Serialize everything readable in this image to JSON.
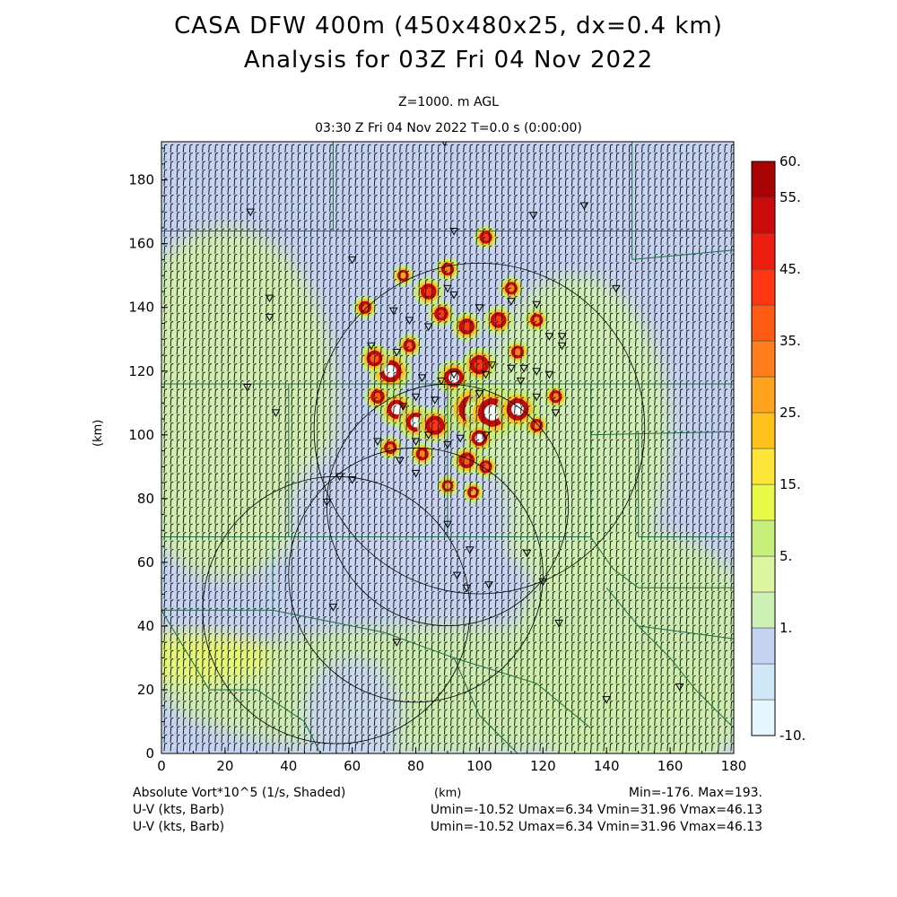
{
  "header": {
    "title": "CASA DFW 400m (450x480x25, dx=0.4 km)",
    "subtitle": "Analysis for 03Z Fri 04 Nov 2022",
    "level": "Z=1000. m AGL",
    "time": "03:30 Z Fri 04 Nov 2022    T=0.0 s (0:00:00)"
  },
  "footer": {
    "field_label": "Absolute Vort*10^5 (1/s, Shaded)",
    "xunit": "(km)",
    "minmax": "Min=-176. Max=193.",
    "wind1_label": "U-V (kts, Barb)",
    "wind1_stats": "Umin=-10.52 Umax=6.34 Vmin=31.96 Vmax=46.13",
    "wind2_label": "U-V (kts, Barb)",
    "wind2_stats": "Umin=-10.52 Umax=6.34 Vmin=31.96 Vmax=46.13"
  },
  "chart_data": {
    "type": "heatmap",
    "ylabel": "(km)",
    "xlabel": "(km)",
    "xlim": [
      0,
      180
    ],
    "ylim": [
      0,
      192
    ],
    "x_ticks": [
      0,
      20,
      40,
      60,
      80,
      100,
      120,
      140,
      160,
      180
    ],
    "y_ticks": [
      0,
      20,
      40,
      60,
      80,
      100,
      120,
      140,
      160,
      180
    ],
    "colorbar": {
      "tick_labels": [
        "60.",
        "55.",
        "45.",
        "35.",
        "25.",
        "15.",
        "5.",
        "1.",
        "-10."
      ],
      "bins": [
        "#e6f6ff",
        "#cfe7f7",
        "#c5d3f2",
        "#cdf0b3",
        "#ddf59f",
        "#c5ee7a",
        "#e8fa45",
        "#ffe538",
        "#ffc21a",
        "#ffa21c",
        "#ff7d1a",
        "#ff5a14",
        "#ff3614",
        "#ec1e10",
        "#cc0a0a",
        "#a80202"
      ]
    },
    "field_blobs": [
      {
        "x": 20,
        "y": 110,
        "rx": 35,
        "ry": 55,
        "color": "#d2f0a8"
      },
      {
        "x": 90,
        "y": 20,
        "rx": 90,
        "ry": 20,
        "color": "#cdf0a8"
      },
      {
        "x": 150,
        "y": 30,
        "rx": 40,
        "ry": 40,
        "color": "#cdf0a8"
      },
      {
        "x": 10,
        "y": 30,
        "rx": 25,
        "ry": 8,
        "color": "#e8fa6a"
      },
      {
        "x": 60,
        "y": 12,
        "rx": 15,
        "ry": 18,
        "color": "#c8d6f4"
      },
      {
        "x": 120,
        "y": 170,
        "rx": 60,
        "ry": 18,
        "color": "#c5d3f2"
      },
      {
        "x": 130,
        "y": 100,
        "rx": 30,
        "ry": 50,
        "color": "#d0f2ae"
      },
      {
        "x": 75,
        "y": 75,
        "rx": 35,
        "ry": 25,
        "color": "#c8d4f2"
      }
    ],
    "storm_cells": [
      {
        "x": 72,
        "y": 120,
        "r": 3.5,
        "core": "#ffffff"
      },
      {
        "x": 74,
        "y": 108,
        "r": 3,
        "core": "#ffffff"
      },
      {
        "x": 80,
        "y": 104,
        "r": 3,
        "core": "#ffffff"
      },
      {
        "x": 86,
        "y": 103,
        "r": 3,
        "core": "#ff3614"
      },
      {
        "x": 92,
        "y": 118,
        "r": 3,
        "core": "#ffffff"
      },
      {
        "x": 98,
        "y": 108,
        "r": 4.5,
        "core": "#ffffff"
      },
      {
        "x": 104,
        "y": 107,
        "r": 4.5,
        "core": "#ffffff"
      },
      {
        "x": 112,
        "y": 108,
        "r": 3.5,
        "core": "#ffffff"
      },
      {
        "x": 100,
        "y": 99,
        "r": 2.5,
        "core": "#ffffff"
      },
      {
        "x": 100,
        "y": 122,
        "r": 3,
        "core": "#ff3614"
      },
      {
        "x": 96,
        "y": 134,
        "r": 2.5,
        "core": "#ff3614"
      },
      {
        "x": 84,
        "y": 145,
        "r": 2.5,
        "core": "#ff3614"
      },
      {
        "x": 106,
        "y": 136,
        "r": 2.5,
        "core": "#ff3614"
      },
      {
        "x": 102,
        "y": 162,
        "r": 2,
        "core": "#ff3614"
      },
      {
        "x": 67,
        "y": 124,
        "r": 2.5,
        "core": "#ff5a14"
      },
      {
        "x": 64,
        "y": 140,
        "r": 2,
        "core": "#ff5a14"
      },
      {
        "x": 88,
        "y": 138,
        "r": 2.2,
        "core": "#ff3614"
      },
      {
        "x": 78,
        "y": 128,
        "r": 2,
        "core": "#ff5a14"
      },
      {
        "x": 96,
        "y": 92,
        "r": 2.5,
        "core": "#ff5a14"
      },
      {
        "x": 102,
        "y": 90,
        "r": 2,
        "core": "#ff5a14"
      },
      {
        "x": 82,
        "y": 94,
        "r": 2,
        "core": "#ff7d1a"
      },
      {
        "x": 118,
        "y": 103,
        "r": 2,
        "core": "#ff7d1a"
      },
      {
        "x": 124,
        "y": 112,
        "r": 2,
        "core": "#ff7d1a"
      },
      {
        "x": 112,
        "y": 126,
        "r": 2,
        "core": "#ff7d1a"
      },
      {
        "x": 72,
        "y": 96,
        "r": 2,
        "core": "#ff7d1a"
      },
      {
        "x": 68,
        "y": 112,
        "r": 2.2,
        "core": "#ff5a14"
      },
      {
        "x": 90,
        "y": 152,
        "r": 2,
        "core": "#ff7d1a"
      },
      {
        "x": 110,
        "y": 146,
        "r": 2,
        "core": "#ff7d1a"
      },
      {
        "x": 118,
        "y": 136,
        "r": 2,
        "core": "#ff7d1a"
      },
      {
        "x": 90,
        "y": 84,
        "r": 1.8,
        "core": "#ffa21c"
      },
      {
        "x": 98,
        "y": 82,
        "r": 1.8,
        "core": "#ffa21c"
      },
      {
        "x": 76,
        "y": 150,
        "r": 1.8,
        "core": "#ffa21c"
      }
    ],
    "radar_rings": [
      {
        "x": 100,
        "y": 102,
        "r": 52
      },
      {
        "x": 80,
        "y": 56,
        "r": 40
      },
      {
        "x": 55,
        "y": 45,
        "r": 42
      },
      {
        "x": 90,
        "y": 78,
        "r": 38
      }
    ],
    "stations": [
      [
        89,
        192
      ],
      [
        117,
        169
      ],
      [
        143,
        146
      ],
      [
        133,
        172
      ],
      [
        60,
        155
      ],
      [
        34,
        143
      ],
      [
        34,
        137
      ],
      [
        27,
        115
      ],
      [
        36,
        107
      ],
      [
        73,
        139
      ],
      [
        78,
        136
      ],
      [
        84,
        134
      ],
      [
        90,
        146
      ],
      [
        92,
        144
      ],
      [
        100,
        140
      ],
      [
        110,
        142
      ],
      [
        118,
        141
      ],
      [
        122,
        131
      ],
      [
        126,
        131
      ],
      [
        126,
        128
      ],
      [
        118,
        120
      ],
      [
        122,
        119
      ],
      [
        114,
        121
      ],
      [
        104,
        122
      ],
      [
        88,
        117
      ],
      [
        82,
        118
      ],
      [
        74,
        126
      ],
      [
        66,
        128
      ],
      [
        76,
        109
      ],
      [
        80,
        112
      ],
      [
        86,
        111
      ],
      [
        92,
        119
      ],
      [
        100,
        113
      ],
      [
        102,
        119
      ],
      [
        110,
        121
      ],
      [
        113,
        117
      ],
      [
        118,
        112
      ],
      [
        124,
        107
      ],
      [
        80,
        98
      ],
      [
        84,
        100
      ],
      [
        90,
        97
      ],
      [
        94,
        99
      ],
      [
        102,
        100
      ],
      [
        68,
        98
      ],
      [
        75,
        92
      ],
      [
        80,
        88
      ],
      [
        56,
        87
      ],
      [
        60,
        86
      ],
      [
        52,
        79
      ],
      [
        90,
        72
      ],
      [
        97,
        64
      ],
      [
        93,
        56
      ],
      [
        96,
        52
      ],
      [
        103,
        53
      ],
      [
        120,
        54
      ],
      [
        115,
        63
      ],
      [
        125,
        41
      ],
      [
        74,
        35
      ],
      [
        54,
        46
      ],
      [
        140,
        17
      ],
      [
        163,
        21
      ],
      [
        28,
        170
      ],
      [
        92,
        164
      ]
    ],
    "county_lines": [
      [
        [
          0,
          164
        ],
        [
          54,
          164
        ],
        [
          54,
          192
        ]
      ],
      [
        [
          54,
          164
        ],
        [
          180,
          164
        ]
      ],
      [
        [
          148,
          164
        ],
        [
          148,
          192
        ]
      ],
      [
        [
          148,
          155
        ],
        [
          148,
          164
        ]
      ],
      [
        [
          148,
          155
        ],
        [
          180,
          158
        ]
      ],
      [
        [
          0,
          116
        ],
        [
          180,
          116
        ]
      ],
      [
        [
          40,
          116
        ],
        [
          40,
          68
        ],
        [
          0,
          68
        ]
      ],
      [
        [
          40,
          68
        ],
        [
          90,
          68
        ],
        [
          90,
          116
        ]
      ],
      [
        [
          90,
          68
        ],
        [
          135,
          68
        ],
        [
          135,
          116
        ]
      ],
      [
        [
          135,
          116
        ],
        [
          135,
          100
        ],
        [
          180,
          101
        ]
      ],
      [
        [
          150,
          101
        ],
        [
          150,
          68
        ],
        [
          180,
          68
        ]
      ],
      [
        [
          135,
          68
        ],
        [
          142,
          58
        ],
        [
          150,
          52
        ],
        [
          180,
          52
        ]
      ],
      [
        [
          0,
          45
        ],
        [
          35,
          45
        ],
        [
          35,
          68
        ]
      ],
      [
        [
          0,
          45
        ],
        [
          15,
          20
        ],
        [
          30,
          20
        ],
        [
          45,
          10
        ],
        [
          50,
          0
        ]
      ],
      [
        [
          35,
          45
        ],
        [
          70,
          38
        ],
        [
          92,
          30
        ],
        [
          118,
          22
        ],
        [
          135,
          8
        ]
      ],
      [
        [
          92,
          30
        ],
        [
          100,
          12
        ],
        [
          112,
          0
        ]
      ],
      [
        [
          140,
          52
        ],
        [
          150,
          40
        ],
        [
          160,
          30
        ],
        [
          168,
          20
        ],
        [
          180,
          8
        ]
      ],
      [
        [
          150,
          40
        ],
        [
          165,
          38
        ],
        [
          180,
          36
        ]
      ]
    ]
  }
}
